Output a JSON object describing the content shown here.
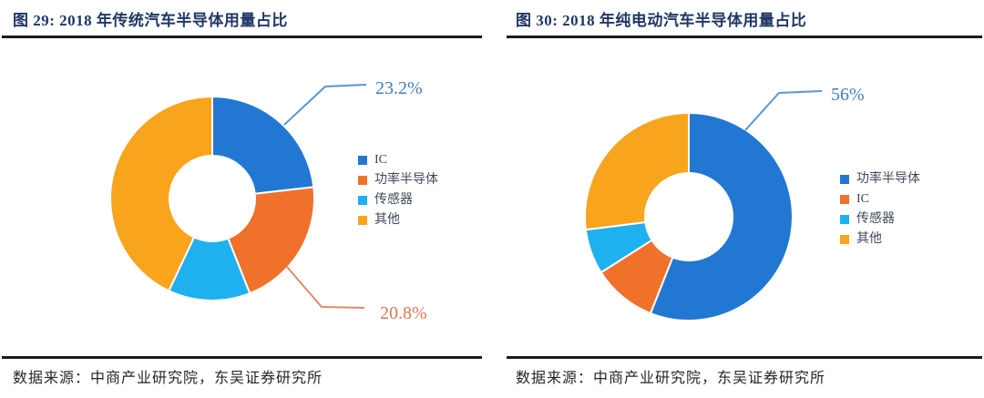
{
  "theme": {
    "background": "#ffffff",
    "title_color": "#1F3864",
    "rule_color": "#1b1b1b",
    "source_color": "#262626",
    "legend_text_color": "#41485A"
  },
  "chart_data": [
    {
      "type": "pie",
      "donut": true,
      "title": "图 29: 2018 年传统汽车半导体用量占比",
      "categories": [
        "IC",
        "功率半导体",
        "传感器",
        "其他"
      ],
      "values": [
        23.2,
        20.8,
        13,
        43
      ],
      "value_unit": "%",
      "colors": [
        "#2277D3",
        "#F0712A",
        "#1FB0F0",
        "#F8A41D"
      ],
      "start_angle_deg": 0,
      "direction": "clockwise",
      "legend_position": "right",
      "callouts": [
        {
          "text": "23.2%",
          "category": "IC",
          "color": "#3F7DC1",
          "line_color": "#6094CE"
        },
        {
          "text": "20.8%",
          "category": "功率半导体",
          "color": "#DD7650",
          "line_color": "#E58A64"
        }
      ],
      "source": "数据来源：中商产业研究院，东吴证券研究所"
    },
    {
      "type": "pie",
      "donut": true,
      "title": "图 30: 2018 年纯电动汽车半导体用量占比",
      "categories": [
        "功率半导体",
        "IC",
        "传感器",
        "其他"
      ],
      "values": [
        56,
        10,
        7,
        27
      ],
      "value_unit": "%",
      "colors": [
        "#2277D3",
        "#F0712A",
        "#1FB0F0",
        "#F8A41D"
      ],
      "start_angle_deg": 0,
      "direction": "clockwise",
      "legend_position": "right",
      "callouts": [
        {
          "text": "56%",
          "category": "功率半导体",
          "color": "#3F7DC1",
          "line_color": "#6094CE"
        }
      ],
      "source": "数据来源：中商产业研究院，东吴证券研究所"
    }
  ]
}
